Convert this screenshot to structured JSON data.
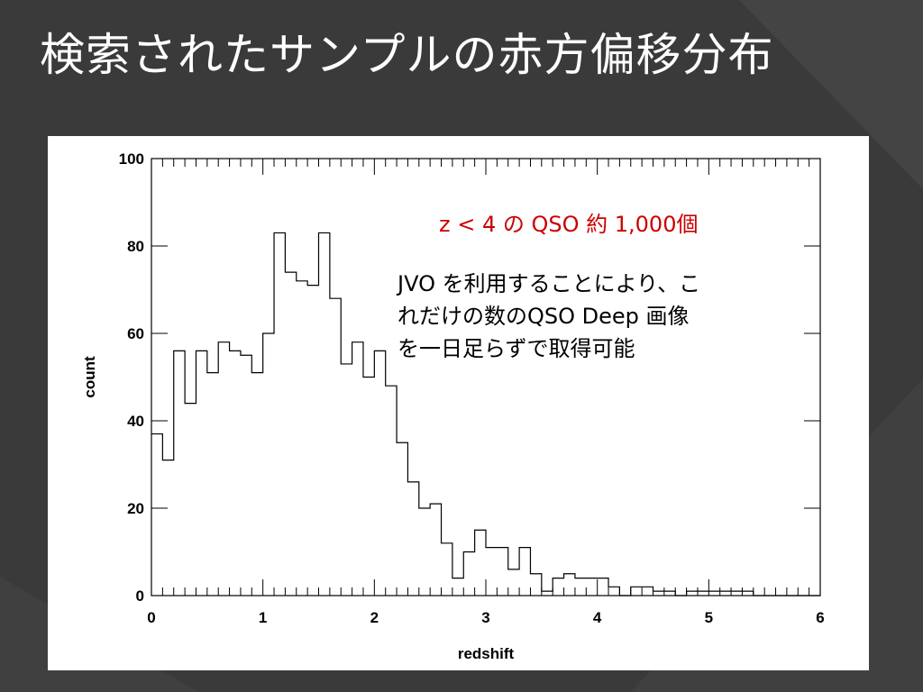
{
  "slide": {
    "title": "検索されたサンプルの赤方偏移分布",
    "background_color": "#3a3a3a"
  },
  "annotation": {
    "highlight": "z < 4 の QSO 約 1,000個",
    "highlight_color": "#cc0000",
    "lines": [
      "JVO を利用することにより、こ",
      "れだけの数のQSO Deep 画像",
      "を一日足らずで取得可能"
    ]
  },
  "chart_data": {
    "type": "histogram",
    "title": "",
    "xlabel": "redshift",
    "ylabel": "count",
    "xlim": [
      0,
      6
    ],
    "ylim": [
      0,
      100
    ],
    "x_ticks": [
      "0",
      "1",
      "2",
      "3",
      "4",
      "5",
      "6"
    ],
    "y_ticks": [
      "0",
      "20",
      "40",
      "60",
      "80",
      "100"
    ],
    "bin_width": 0.1,
    "bin_start": 0.0,
    "counts": [
      37,
      31,
      56,
      44,
      56,
      51,
      58,
      56,
      55,
      51,
      60,
      83,
      74,
      72,
      71,
      83,
      68,
      53,
      58,
      50,
      56,
      48,
      35,
      26,
      20,
      21,
      12,
      4,
      10,
      15,
      11,
      11,
      6,
      11,
      5,
      1,
      4,
      5,
      4,
      4,
      4,
      2,
      0,
      2,
      2,
      1,
      1,
      0,
      1,
      1,
      1,
      1,
      1,
      1,
      0,
      0,
      0,
      0,
      0,
      0
    ],
    "grid": false
  }
}
